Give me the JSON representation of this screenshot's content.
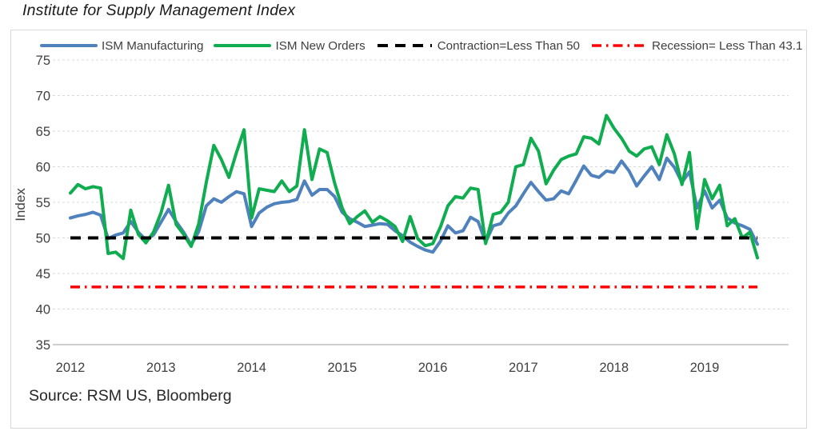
{
  "title": "Institute for Supply Management Index",
  "source": "Source: RSM US, Bloomberg",
  "colors": {
    "manufacturing_blue": "#4F81BD",
    "new_orders_green": "#0FAD4F",
    "contraction_black": "#000000",
    "recession_red": "#FF0000",
    "grid": "#D9D9D9",
    "axis": "#BFBFBF",
    "tick_text": "#404040",
    "box_border": "#D8D8D8"
  },
  "legend": [
    {
      "label": "ISM Manufacturing",
      "color": "#4F81BD",
      "style": "solid"
    },
    {
      "label": "ISM New Orders",
      "color": "#0FAD4F",
      "style": "solid"
    },
    {
      "label": "Contraction=Less Than 50",
      "color": "#000000",
      "style": "dash"
    },
    {
      "label": "Recession= Less Than 43.1",
      "color": "#FF0000",
      "style": "dashdot"
    }
  ],
  "chart_data": {
    "type": "line",
    "title": "Institute for Supply Management Index",
    "xlabel": "",
    "ylabel": "Index",
    "ylim": [
      35,
      75
    ],
    "ytick_step": 5,
    "grid": true,
    "legend_position": "top",
    "x_year_labels": [
      "2012",
      "2013",
      "2014",
      "2015",
      "2016",
      "2017",
      "2018",
      "2019"
    ],
    "x_frequency": "monthly",
    "x_range": "Jan 2012 - Aug 2019",
    "n_points": 92,
    "series": [
      {
        "id": "ism-manufacturing",
        "name": "ISM Manufacturing",
        "color": "#4F81BD",
        "style": "solid",
        "width": 4,
        "values": [
          52.8,
          53.1,
          53.3,
          53.6,
          53.2,
          49.9,
          50.4,
          50.7,
          52.3,
          50.8,
          49.7,
          50.4,
          52.2,
          54.0,
          52.3,
          50.8,
          49.0,
          50.9,
          54.5,
          55.5,
          55.0,
          55.8,
          56.5,
          56.2,
          51.6,
          53.5,
          54.3,
          54.8,
          55.0,
          55.1,
          55.4,
          58.0,
          56.0,
          56.8,
          56.8,
          55.8,
          53.6,
          52.7,
          52.2,
          51.6,
          51.8,
          52.0,
          51.9,
          51.0,
          50.3,
          49.4,
          48.8,
          48.3,
          48.0,
          49.5,
          51.7,
          50.7,
          51.0,
          52.9,
          52.3,
          49.4,
          51.7,
          52.0,
          53.5,
          54.5,
          56.2,
          57.8,
          56.5,
          55.3,
          55.5,
          56.6,
          56.2,
          58.1,
          60.1,
          58.8,
          58.5,
          59.4,
          59.2,
          60.8,
          59.4,
          57.3,
          58.7,
          60.0,
          58.2,
          61.2,
          59.9,
          57.8,
          59.3,
          54.2,
          56.6,
          54.2,
          55.3,
          52.8,
          52.1,
          51.7,
          51.2,
          49.1
        ]
      },
      {
        "id": "ism-new-orders",
        "name": "ISM New Orders",
        "color": "#0FAD4F",
        "style": "solid",
        "width": 4,
        "values": [
          56.3,
          57.5,
          56.9,
          57.2,
          57.0,
          47.8,
          48.0,
          47.1,
          53.9,
          50.5,
          49.3,
          50.8,
          53.5,
          57.4,
          51.9,
          50.5,
          48.8,
          52.0,
          57.8,
          63.0,
          61.0,
          58.5,
          62.0,
          65.2,
          52.8,
          56.9,
          56.7,
          56.5,
          58.0,
          56.5,
          57.3,
          65.2,
          58.2,
          62.5,
          62.0,
          57.7,
          54.2,
          52.0,
          53.0,
          53.8,
          52.2,
          53.0,
          52.4,
          51.6,
          49.5,
          53.0,
          49.9,
          48.9,
          49.2,
          51.5,
          54.5,
          55.8,
          55.6,
          57.0,
          56.8,
          49.2,
          53.3,
          53.6,
          55.0,
          60.0,
          60.3,
          64.0,
          62.2,
          57.6,
          59.5,
          61.0,
          61.5,
          61.8,
          64.2,
          64.0,
          63.2,
          67.2,
          65.4,
          64.0,
          62.2,
          61.5,
          62.5,
          62.8,
          60.3,
          64.5,
          61.8,
          57.5,
          62.0,
          51.3,
          58.2,
          55.5,
          57.4,
          51.7,
          52.7,
          50.0,
          50.8,
          47.2
        ]
      },
      {
        "id": "contraction-threshold",
        "name": "Contraction=Less Than 50",
        "color": "#000000",
        "style": "dash",
        "width": 4,
        "ref_value": 50
      },
      {
        "id": "recession-threshold",
        "name": "Recession= Less Than 43.1",
        "color": "#FF0000",
        "style": "dashdot",
        "width": 3.5,
        "ref_value": 43.1
      }
    ]
  }
}
